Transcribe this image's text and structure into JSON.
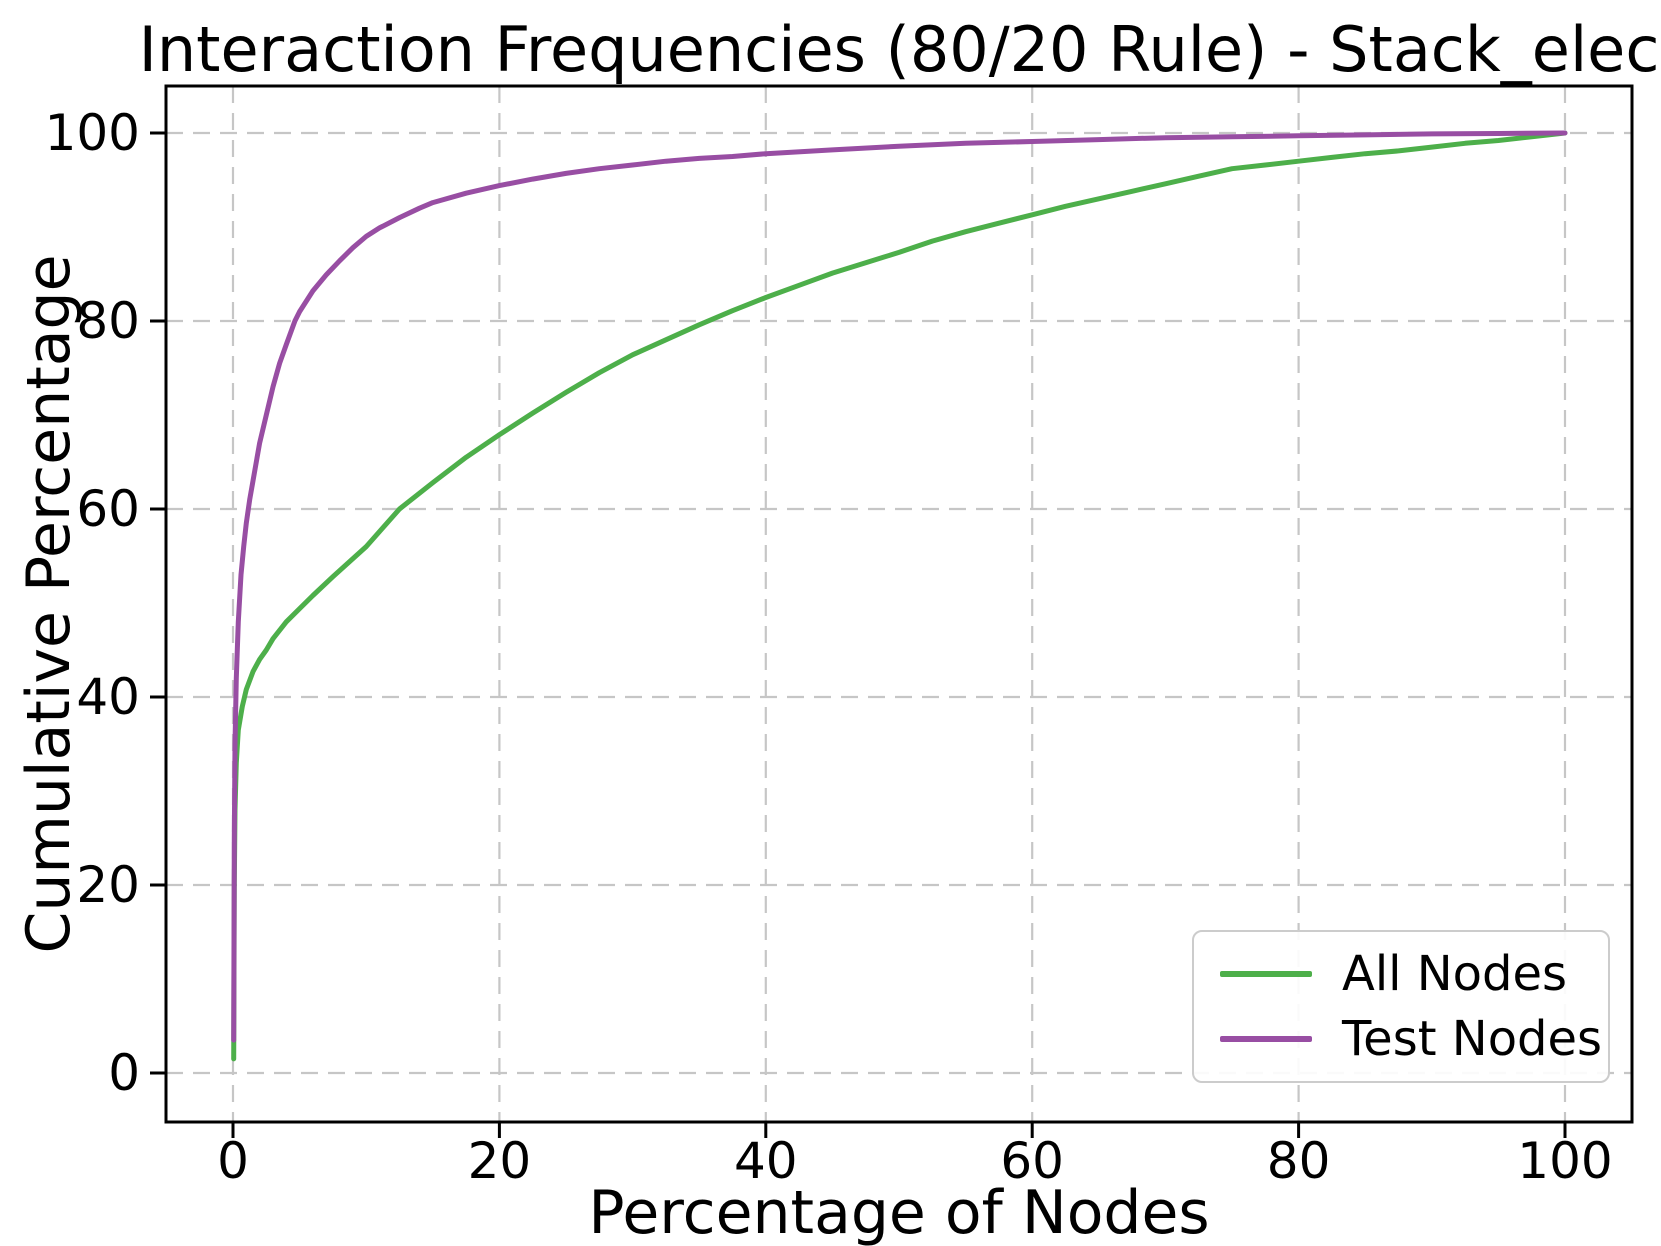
{
  "chart_data": {
    "type": "line",
    "title": "Interaction Frequencies (80/20 Rule) - Stack_elec",
    "xlabel": "Percentage of Nodes",
    "ylabel": "Cumulative Percentage",
    "x_ticks": [
      0,
      20,
      40,
      60,
      80,
      100
    ],
    "y_ticks": [
      0,
      20,
      40,
      60,
      80,
      100
    ],
    "xlim": [
      -5.2,
      105.2
    ],
    "ylim": [
      -5.2,
      105.2
    ],
    "grid": "dashed",
    "grid_color": "#c6c6c6",
    "axis_color": "#000000",
    "legend_position": "lower right",
    "series": [
      {
        "name": "All Nodes",
        "color": "#4daf4a",
        "points": [
          [
            0.05,
            1.5
          ],
          [
            0.1,
            20
          ],
          [
            0.15,
            28
          ],
          [
            0.25,
            33
          ],
          [
            0.4,
            36.5
          ],
          [
            0.7,
            39
          ],
          [
            1,
            40.8
          ],
          [
            1.5,
            42.7
          ],
          [
            2,
            44
          ],
          [
            2.5,
            45
          ],
          [
            3,
            46.2
          ],
          [
            4,
            48
          ],
          [
            5,
            49.4
          ],
          [
            6,
            50.8
          ],
          [
            7.5,
            52.8
          ],
          [
            10,
            56
          ],
          [
            12.5,
            60
          ],
          [
            15,
            62.8
          ],
          [
            17.5,
            65.5
          ],
          [
            20,
            67.9
          ],
          [
            22.5,
            70.2
          ],
          [
            25,
            72.4
          ],
          [
            27.5,
            74.5
          ],
          [
            30,
            76.4
          ],
          [
            32.5,
            78
          ],
          [
            35,
            79.6
          ],
          [
            37.5,
            81.1
          ],
          [
            40,
            82.5
          ],
          [
            42.5,
            83.8
          ],
          [
            45,
            85.1
          ],
          [
            47.5,
            86.2
          ],
          [
            50,
            87.3
          ],
          [
            52.5,
            88.5
          ],
          [
            55,
            89.5
          ],
          [
            57.5,
            90.4
          ],
          [
            60,
            91.3
          ],
          [
            62.5,
            92.2
          ],
          [
            65,
            93
          ],
          [
            67.5,
            93.8
          ],
          [
            70,
            94.6
          ],
          [
            72.5,
            95.4
          ],
          [
            75,
            96.2
          ],
          [
            77.5,
            96.6
          ],
          [
            80,
            97
          ],
          [
            82.5,
            97.4
          ],
          [
            85,
            97.8
          ],
          [
            87.5,
            98.1
          ],
          [
            90,
            98.5
          ],
          [
            92.5,
            98.9
          ],
          [
            95,
            99.2
          ],
          [
            97.5,
            99.6
          ],
          [
            100,
            100
          ]
        ]
      },
      {
        "name": "Test Nodes",
        "color": "#984ea3",
        "points": [
          [
            0.05,
            3.5
          ],
          [
            0.1,
            25
          ],
          [
            0.15,
            35
          ],
          [
            0.25,
            42
          ],
          [
            0.4,
            48
          ],
          [
            0.6,
            53
          ],
          [
            0.8,
            56
          ],
          [
            1,
            58.5
          ],
          [
            1.25,
            61
          ],
          [
            1.5,
            63
          ],
          [
            1.75,
            65
          ],
          [
            2,
            67
          ],
          [
            2.5,
            70
          ],
          [
            3,
            73
          ],
          [
            3.5,
            75.5
          ],
          [
            4,
            77.5
          ],
          [
            4.65,
            80
          ],
          [
            5,
            81
          ],
          [
            6,
            83.2
          ],
          [
            7,
            84.9
          ],
          [
            8,
            86.4
          ],
          [
            9,
            87.8
          ],
          [
            10,
            89
          ],
          [
            11,
            89.9
          ],
          [
            12.5,
            91
          ],
          [
            14,
            92
          ],
          [
            15,
            92.6
          ],
          [
            17.5,
            93.6
          ],
          [
            20,
            94.4
          ],
          [
            22.5,
            95.1
          ],
          [
            25,
            95.7
          ],
          [
            27.5,
            96.2
          ],
          [
            30,
            96.6
          ],
          [
            32.5,
            97
          ],
          [
            35,
            97.3
          ],
          [
            37.5,
            97.5
          ],
          [
            40,
            97.8
          ],
          [
            45,
            98.2
          ],
          [
            50,
            98.6
          ],
          [
            55,
            98.9
          ],
          [
            60,
            99.1
          ],
          [
            65,
            99.3
          ],
          [
            70,
            99.5
          ],
          [
            75,
            99.6
          ],
          [
            80,
            99.7
          ],
          [
            85,
            99.8
          ],
          [
            90,
            99.9
          ],
          [
            95,
            99.95
          ],
          [
            100,
            100
          ]
        ]
      }
    ]
  }
}
